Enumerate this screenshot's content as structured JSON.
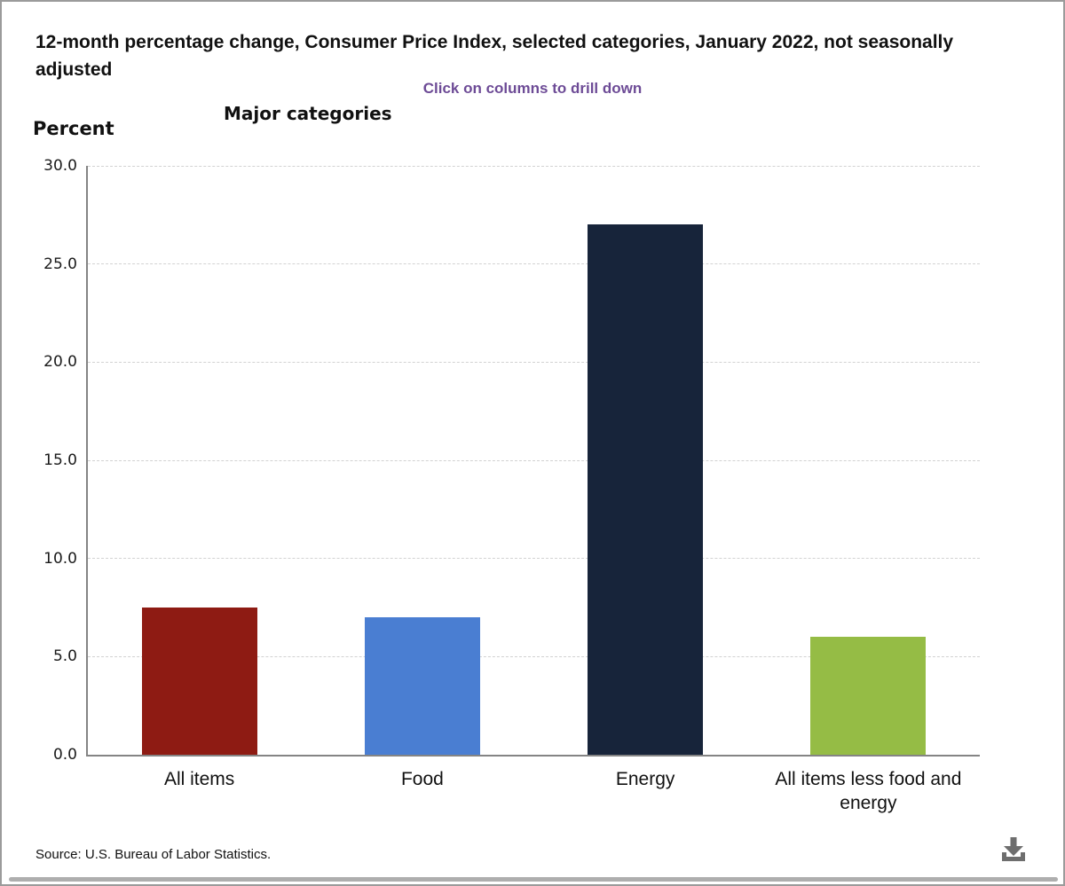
{
  "page": {
    "title": "12-month percentage change, Consumer Price Index, selected categories, January 2022, not seasonally adjusted",
    "hint": "Click on columns to drill down",
    "hint_color": "#6d4b96"
  },
  "chart_data": {
    "type": "bar",
    "title": "Major categories",
    "ylabel": "Percent",
    "categories": [
      "All items",
      "Food",
      "Energy",
      "All items less food and energy"
    ],
    "values": [
      7.5,
      7.0,
      27.0,
      6.0
    ],
    "bar_colors": [
      "#8e1b13",
      "#4a7ed2",
      "#17243a",
      "#95bc45"
    ],
    "ylim": [
      0,
      30
    ],
    "ytick_step": 5,
    "ytick_decimals": 1,
    "grid": "horizontal-dashed",
    "legend": "none"
  },
  "footer": {
    "source": "Source: U.S. Bureau of Labor Statistics.",
    "download_icon": "download-icon",
    "icon_color": "#6e6e6e"
  }
}
